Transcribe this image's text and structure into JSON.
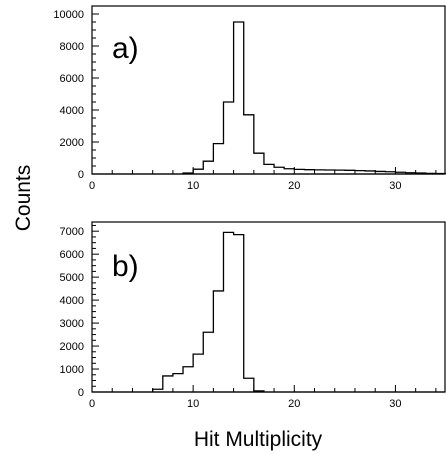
{
  "figure": {
    "ylabel": "Counts",
    "xlabel": "Hit Multiplicity"
  },
  "chart_data": [
    {
      "type": "bar",
      "panel_label": "a)",
      "xlim": [
        0,
        35
      ],
      "ylim": [
        0,
        10500
      ],
      "xticks": [
        0,
        10,
        20,
        30
      ],
      "yticks": [
        0,
        2000,
        4000,
        6000,
        8000,
        10000
      ],
      "bin_width": 1,
      "bins": [
        {
          "x": 9,
          "y": 60
        },
        {
          "x": 10,
          "y": 300
        },
        {
          "x": 11,
          "y": 800
        },
        {
          "x": 12,
          "y": 1900
        },
        {
          "x": 13,
          "y": 4500
        },
        {
          "x": 14,
          "y": 9500
        },
        {
          "x": 15,
          "y": 3700
        },
        {
          "x": 16,
          "y": 1300
        },
        {
          "x": 17,
          "y": 600
        },
        {
          "x": 18,
          "y": 420
        },
        {
          "x": 19,
          "y": 330
        },
        {
          "x": 20,
          "y": 290
        },
        {
          "x": 21,
          "y": 270
        },
        {
          "x": 22,
          "y": 260
        },
        {
          "x": 23,
          "y": 250
        },
        {
          "x": 24,
          "y": 240
        },
        {
          "x": 25,
          "y": 230
        },
        {
          "x": 26,
          "y": 210
        },
        {
          "x": 27,
          "y": 190
        },
        {
          "x": 28,
          "y": 160
        },
        {
          "x": 29,
          "y": 140
        },
        {
          "x": 30,
          "y": 110
        },
        {
          "x": 31,
          "y": 80
        },
        {
          "x": 32,
          "y": 60
        },
        {
          "x": 33,
          "y": 40
        },
        {
          "x": 34,
          "y": 30
        }
      ]
    },
    {
      "type": "bar",
      "panel_label": "b)",
      "xlim": [
        0,
        35
      ],
      "ylim": [
        0,
        7400
      ],
      "xticks": [
        0,
        10,
        20,
        30
      ],
      "yticks": [
        0,
        1000,
        2000,
        3000,
        4000,
        5000,
        6000,
        7000
      ],
      "bin_width": 1,
      "bins": [
        {
          "x": 6,
          "y": 120
        },
        {
          "x": 7,
          "y": 700
        },
        {
          "x": 8,
          "y": 800
        },
        {
          "x": 9,
          "y": 1100
        },
        {
          "x": 10,
          "y": 1650
        },
        {
          "x": 11,
          "y": 2600
        },
        {
          "x": 12,
          "y": 4400
        },
        {
          "x": 13,
          "y": 6950
        },
        {
          "x": 14,
          "y": 6850
        },
        {
          "x": 15,
          "y": 600
        },
        {
          "x": 16,
          "y": 50
        }
      ]
    }
  ]
}
